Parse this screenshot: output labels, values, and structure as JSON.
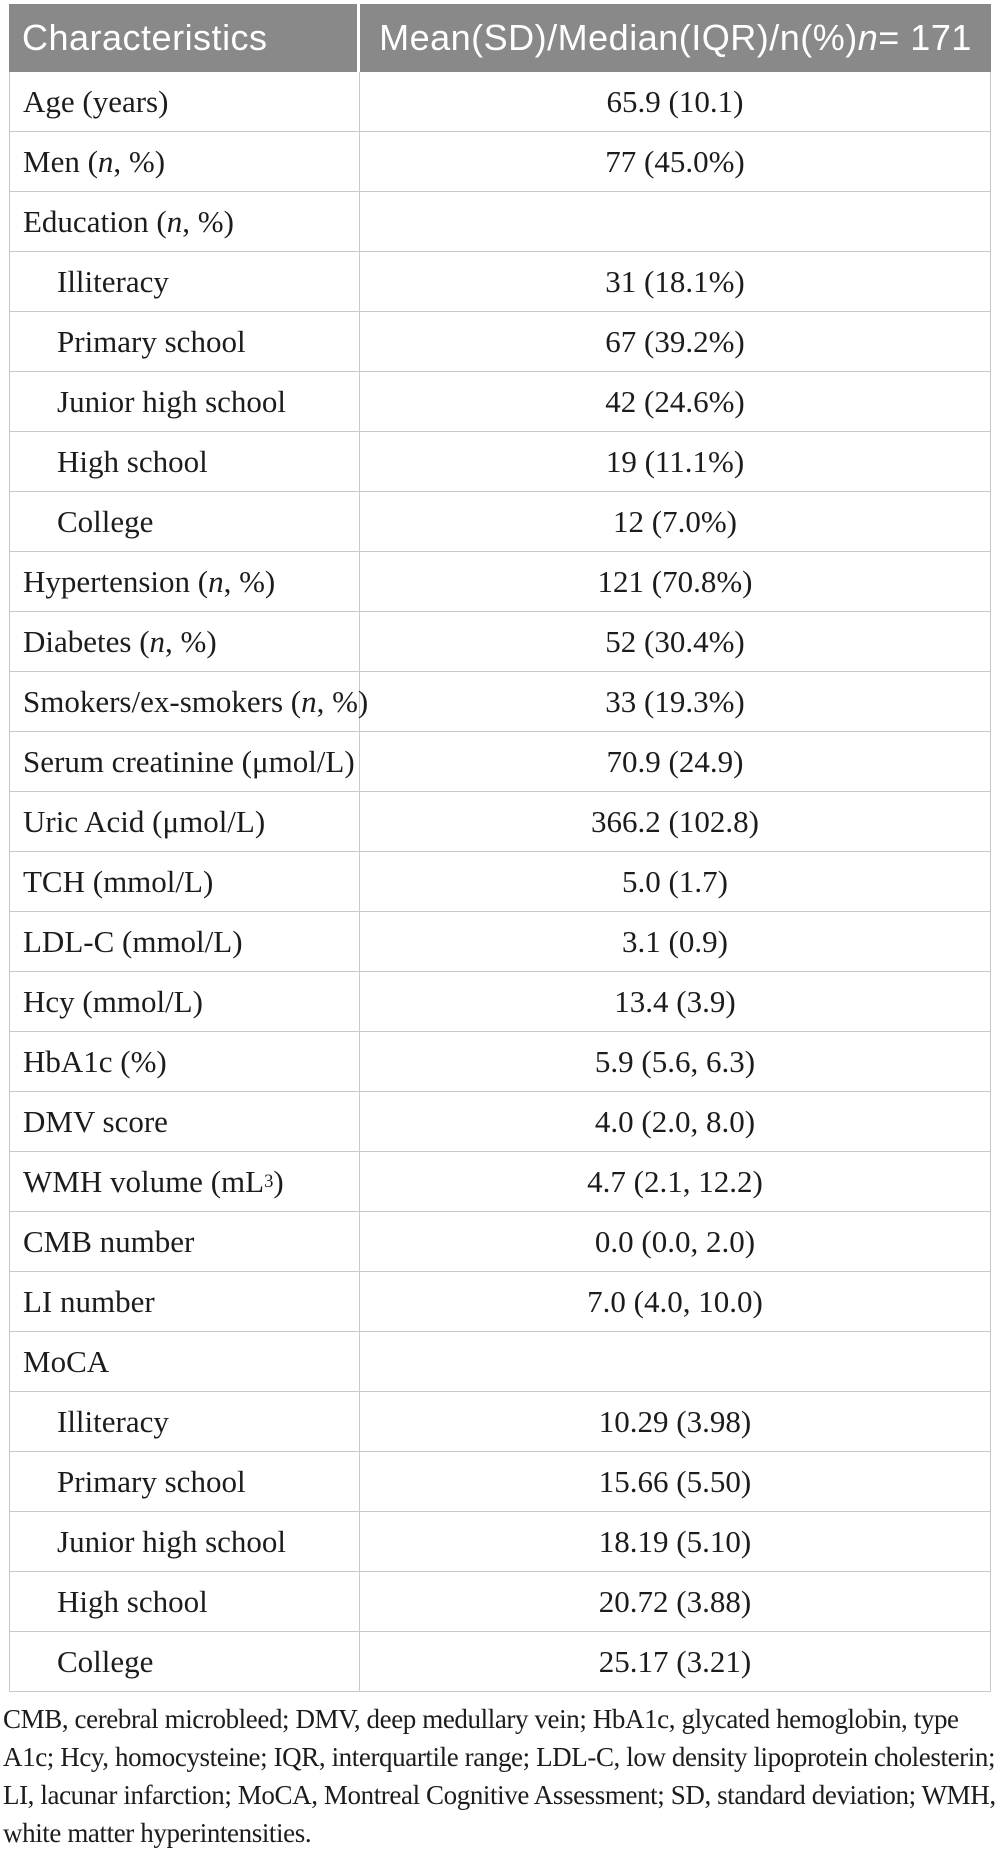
{
  "table": {
    "header": {
      "characteristics_label": "Characteristics",
      "values_label": "Mean(SD)/Median(IQR)/n(%) *n* = 171"
    },
    "rows": [
      {
        "label": "Age (years)",
        "value": "65.9 (10.1)",
        "indent": false
      },
      {
        "label": "Men (*n*, %)",
        "value": "77 (45.0%)",
        "indent": false
      },
      {
        "label": "Education (*n*, %)",
        "value": "",
        "indent": false
      },
      {
        "label": "Illiteracy",
        "value": "31 (18.1%)",
        "indent": true
      },
      {
        "label": "Primary school",
        "value": "67 (39.2%)",
        "indent": true
      },
      {
        "label": "Junior high school",
        "value": "42 (24.6%)",
        "indent": true
      },
      {
        "label": "High school",
        "value": "19 (11.1%)",
        "indent": true
      },
      {
        "label": "College",
        "value": "12 (7.0%)",
        "indent": true
      },
      {
        "label": "Hypertension (*n*, %)",
        "value": "121 (70.8%)",
        "indent": false
      },
      {
        "label": "Diabetes (*n*, %)",
        "value": "52 (30.4%)",
        "indent": false
      },
      {
        "label": "Smokers/ex-smokers (*n*, %)",
        "value": "33 (19.3%)",
        "indent": false
      },
      {
        "label": "Serum creatinine (μmol/L)",
        "value": "70.9 (24.9)",
        "indent": false
      },
      {
        "label": "Uric Acid (μmol/L)",
        "value": "366.2 (102.8)",
        "indent": false
      },
      {
        "label": "TCH (mmol/L)",
        "value": "5.0 (1.7)",
        "indent": false
      },
      {
        "label": "LDL-C (mmol/L)",
        "value": "3.1 (0.9)",
        "indent": false
      },
      {
        "label": "Hcy (mmol/L)",
        "value": "13.4 (3.9)",
        "indent": false
      },
      {
        "label": "HbA1c (%)",
        "value": "5.9 (5.6, 6.3)",
        "indent": false
      },
      {
        "label": "DMV score",
        "value": "4.0 (2.0, 8.0)",
        "indent": false
      },
      {
        "label": "WMH volume (mL^3^)",
        "value": "4.7 (2.1, 12.2)",
        "indent": false
      },
      {
        "label": "CMB number",
        "value": "0.0 (0.0, 2.0)",
        "indent": false
      },
      {
        "label": "LI number",
        "value": "7.0 (4.0, 10.0)",
        "indent": false
      },
      {
        "label": "MoCA",
        "value": "",
        "indent": false
      },
      {
        "label": "Illiteracy",
        "value": "10.29 (3.98)",
        "indent": true
      },
      {
        "label": "Primary school",
        "value": "15.66 (5.50)",
        "indent": true
      },
      {
        "label": "Junior high school",
        "value": "18.19 (5.10)",
        "indent": true
      },
      {
        "label": "High school",
        "value": "20.72 (3.88)",
        "indent": true
      },
      {
        "label": "College",
        "value": "25.17 (3.21)",
        "indent": true
      }
    ]
  },
  "footnote": {
    "text": "CMB, cerebral microbleed; DMV, deep medullary vein; HbA1c, glycated hemoglobin, type A1c; Hcy, homocysteine; IQR, interquartile range; LDL-C, low density lipoprotein cholesterin; LI, lacunar infarction; MoCA, Montreal Cognitive Assessment; SD, standard deviation; WMH, white matter hyperintensities."
  },
  "colors": {
    "header_background": "#898989",
    "header_text": "#ffffff",
    "grid_border": "#c9c9c9",
    "body_text": "#1c1c1c"
  }
}
